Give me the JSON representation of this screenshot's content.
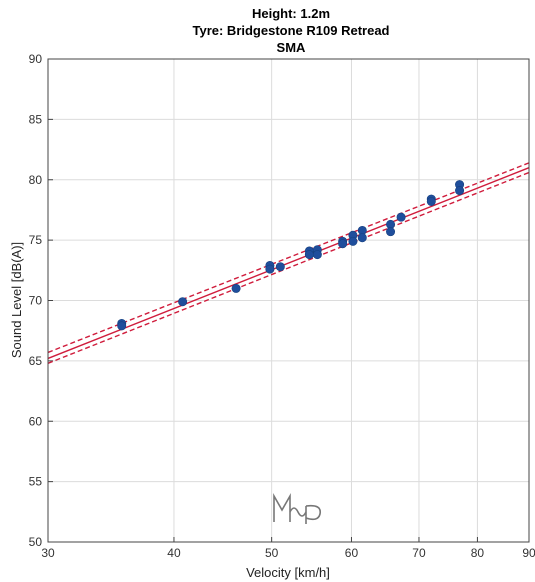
{
  "chart_data": {
    "type": "scatter",
    "title_lines": [
      "Height: 1.2m",
      "Tyre: Bridgestone R109 Retread",
      "SMA"
    ],
    "xlabel": "Velocity [km/h]",
    "ylabel": "Sound Level [dB(A)]",
    "xscale": "log",
    "xlim": [
      30,
      90
    ],
    "ylim": [
      50,
      90
    ],
    "xticks": [
      30,
      40,
      50,
      60,
      70,
      80,
      90
    ],
    "yticks": [
      50,
      55,
      60,
      65,
      70,
      75,
      80,
      85,
      90
    ],
    "grid": true,
    "colors": {
      "points": "#1f4e9c",
      "fit": "#d01c3c",
      "grid": "#dcdcdc",
      "axis": "#444444"
    },
    "points": [
      [
        35.5,
        68.1
      ],
      [
        35.5,
        67.9
      ],
      [
        40.8,
        69.9
      ],
      [
        46.1,
        71.0
      ],
      [
        49.8,
        72.9
      ],
      [
        49.8,
        72.6
      ],
      [
        51.0,
        72.8
      ],
      [
        54.5,
        74.1
      ],
      [
        54.5,
        73.8
      ],
      [
        55.5,
        74.2
      ],
      [
        55.5,
        73.8
      ],
      [
        58.8,
        74.9
      ],
      [
        58.8,
        74.7
      ],
      [
        60.2,
        75.4
      ],
      [
        60.2,
        74.9
      ],
      [
        61.5,
        75.8
      ],
      [
        61.5,
        75.2
      ],
      [
        65.6,
        76.3
      ],
      [
        65.6,
        75.7
      ],
      [
        67.2,
        76.9
      ],
      [
        72.0,
        78.4
      ],
      [
        72.0,
        78.2
      ],
      [
        76.8,
        79.6
      ],
      [
        76.8,
        79.1
      ]
    ],
    "fit_line": {
      "x": [
        30,
        90
      ],
      "y": [
        65.2,
        81.0
      ]
    },
    "confidence_upper": {
      "x": [
        30,
        90
      ],
      "y": [
        65.7,
        81.4
      ]
    },
    "confidence_lower": {
      "x": [
        30,
        90
      ],
      "y": [
        64.8,
        80.6
      ]
    }
  },
  "watermark": {
    "alt": "MAP logo"
  }
}
